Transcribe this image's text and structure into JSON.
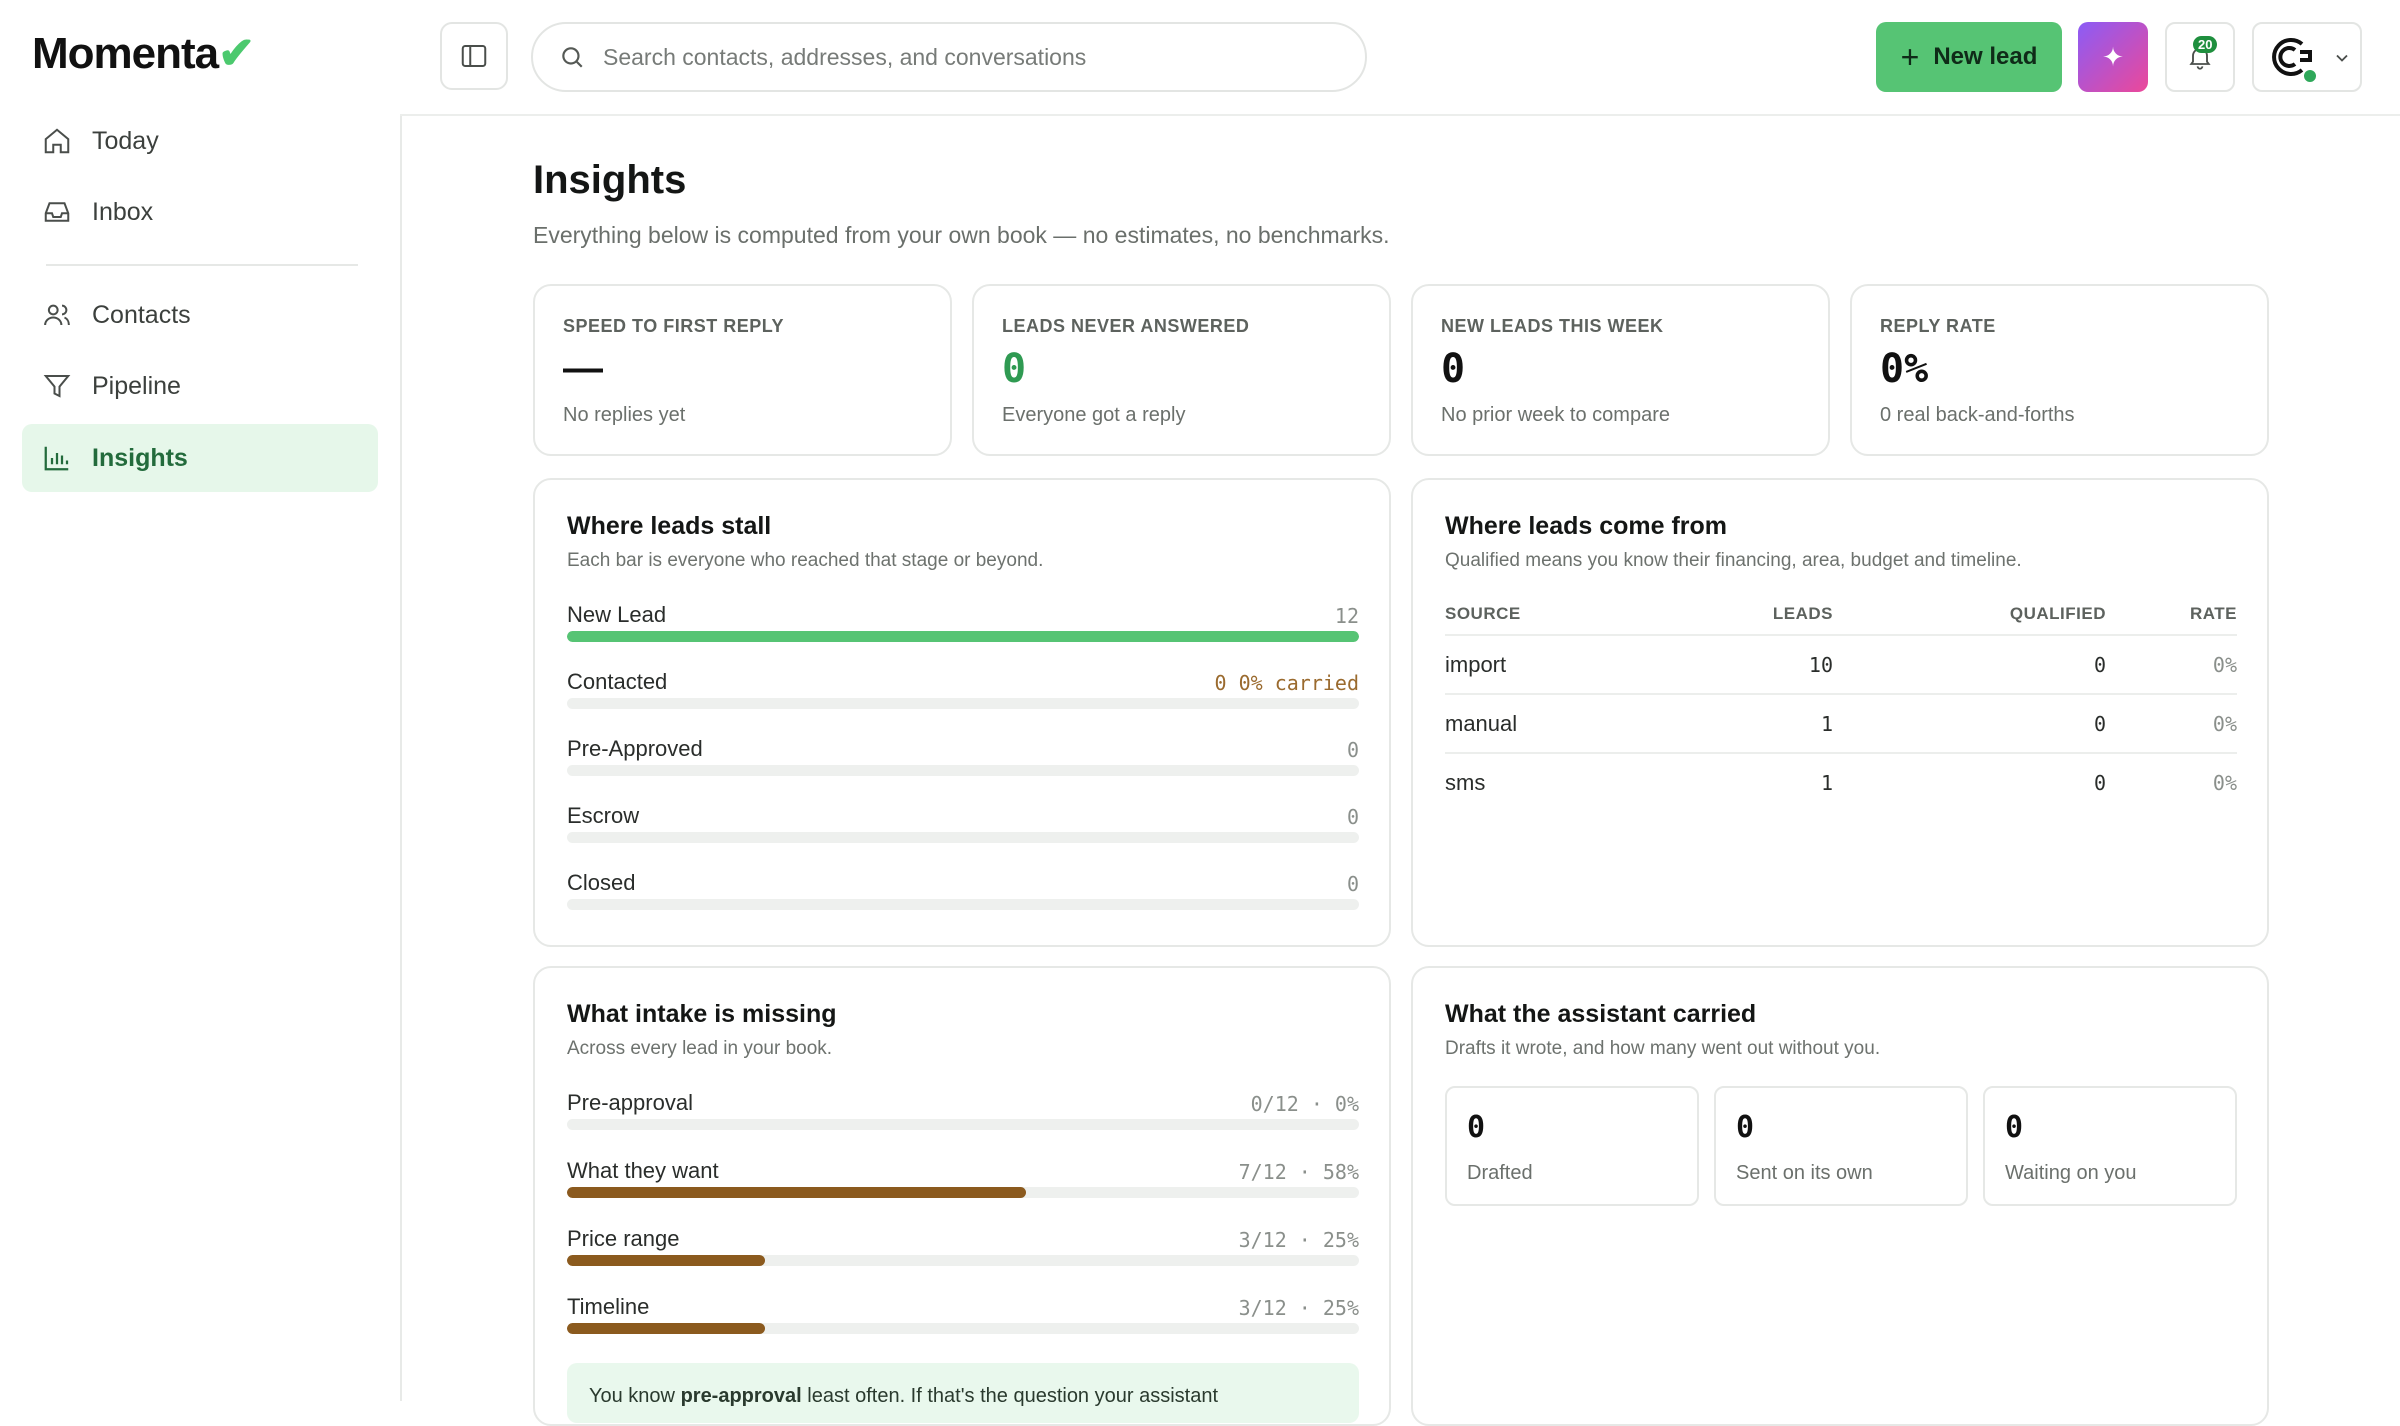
{
  "brand": {
    "name": "Momenta",
    "mark": "✔"
  },
  "sidebar": {
    "items": [
      {
        "label": "Today",
        "icon": "home-icon"
      },
      {
        "label": "Inbox",
        "icon": "inbox-icon"
      },
      {
        "label": "Contacts",
        "icon": "users-icon"
      },
      {
        "label": "Pipeline",
        "icon": "funnel-icon"
      },
      {
        "label": "Insights",
        "icon": "bar-chart-icon",
        "active": true
      }
    ]
  },
  "header": {
    "search_placeholder": "Search contacts, addresses, and conversations",
    "new_lead_label": "New lead",
    "notification_count": "20",
    "accent": "#56c474"
  },
  "page": {
    "title": "Insights",
    "subtitle": "Everything below is computed from your own book — no estimates, no benchmarks."
  },
  "stats": [
    {
      "label": "SPEED TO FIRST REPLY",
      "value": "—",
      "note": "No replies yet"
    },
    {
      "label": "LEADS NEVER ANSWERED",
      "value": "0",
      "note": "Everyone got a reply"
    },
    {
      "label": "NEW LEADS THIS WEEK",
      "value": "0",
      "note": "No prior week to compare"
    },
    {
      "label": "REPLY RATE",
      "value": "0%",
      "note": "0 real back-and-forths"
    }
  ],
  "stall": {
    "title": "Where leads stall",
    "subtitle": "Each bar is everyone who reached that stage or beyond.",
    "rows": [
      {
        "label": "New Lead",
        "value": "12",
        "fraction": 1.0
      },
      {
        "label": "Contacted",
        "value": "0 0% carried",
        "fraction": 0
      },
      {
        "label": "Pre-Approved",
        "value": "0",
        "fraction": 0
      },
      {
        "label": "Escrow",
        "value": "0",
        "fraction": 0
      },
      {
        "label": "Closed",
        "value": "0",
        "fraction": 0
      }
    ]
  },
  "sources": {
    "title": "Where leads come from",
    "subtitle": "Qualified means you know their financing, area, budget and timeline.",
    "columns": [
      "SOURCE",
      "LEADS",
      "QUALIFIED",
      "RATE"
    ],
    "rows": [
      [
        "import",
        "10",
        "0",
        "0%"
      ],
      [
        "manual",
        "1",
        "0",
        "0%"
      ],
      [
        "sms",
        "1",
        "0",
        "0%"
      ]
    ]
  },
  "intake": {
    "title": "What intake is missing",
    "subtitle": "Across every lead in your book.",
    "rows": [
      {
        "label": "Pre-approval",
        "value": "0/12 · 0%",
        "fraction": 0
      },
      {
        "label": "What they want",
        "value": "7/12 · 58%",
        "fraction": 0.58
      },
      {
        "label": "Price range",
        "value": "3/12 · 25%",
        "fraction": 0.25
      },
      {
        "label": "Timeline",
        "value": "3/12 · 25%",
        "fraction": 0.25
      }
    ],
    "hint_prefix": "You know",
    "hint_bold": "pre-approval",
    "hint_suffix": "least often. If that's the question your assistant"
  },
  "assistant": {
    "title": "What the assistant carried",
    "subtitle": "Drafts it wrote, and how many went out without you.",
    "tiles": [
      {
        "value": "0",
        "label": "Drafted"
      },
      {
        "value": "0",
        "label": "Sent on its own"
      },
      {
        "value": "0",
        "label": "Waiting on you"
      }
    ]
  },
  "colors": {
    "green_bar": "#56c474",
    "brown_bar": "#8b5a1e"
  }
}
